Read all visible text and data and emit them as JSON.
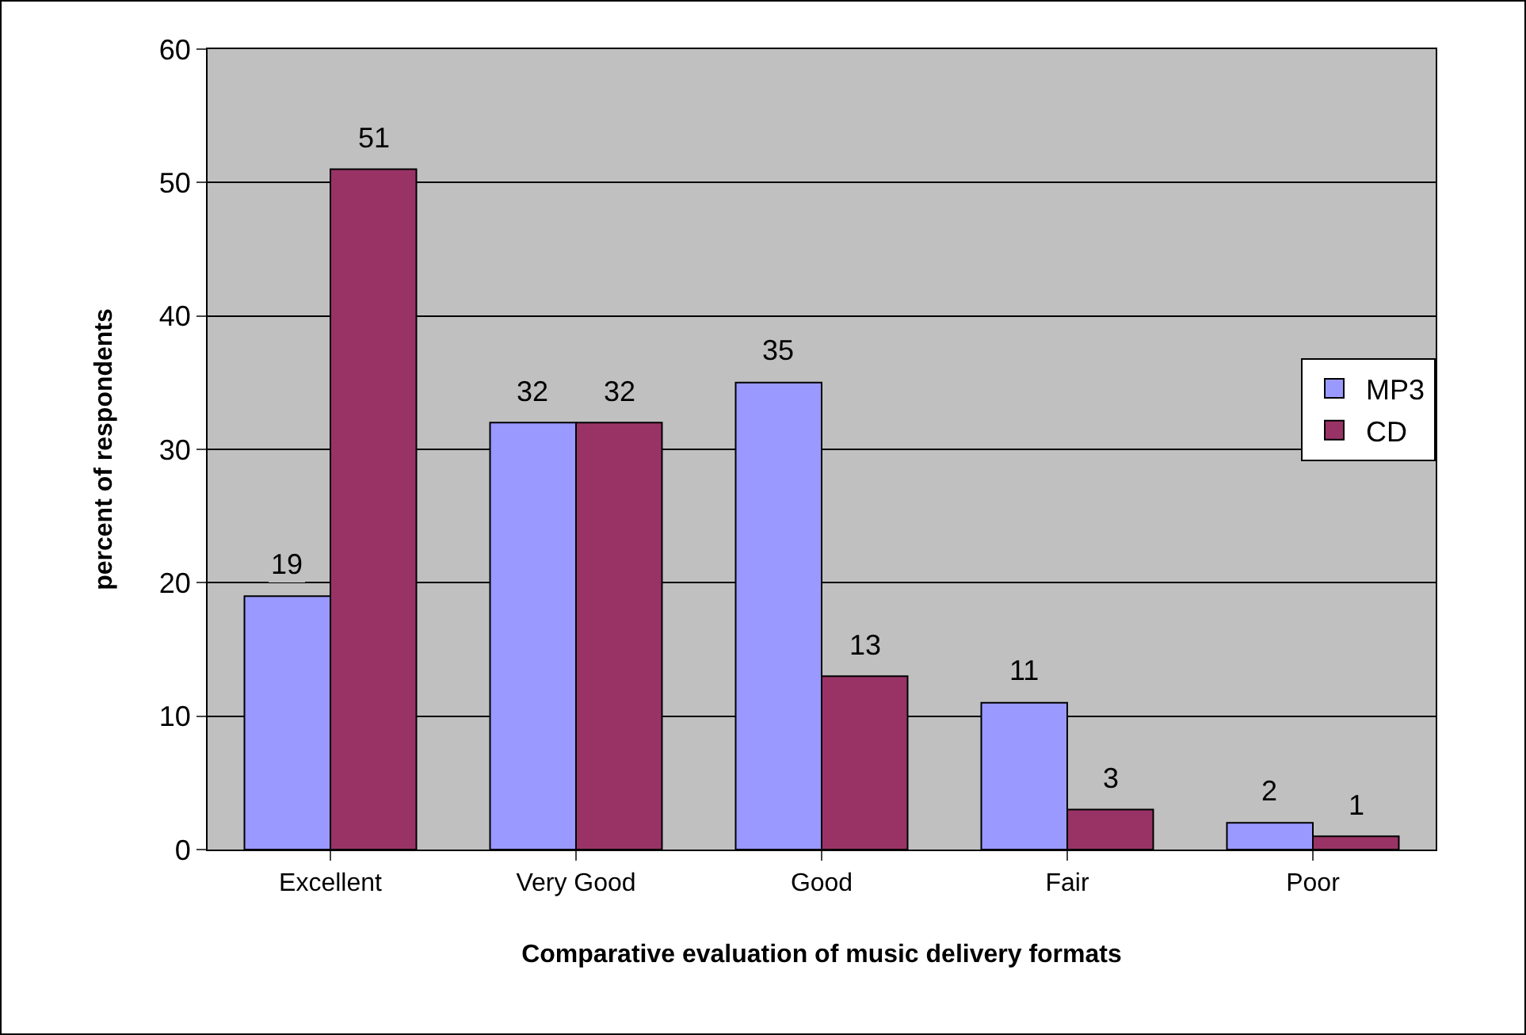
{
  "chart_data": {
    "type": "bar",
    "xlabel": "Comparative evaluation of music delivery formats",
    "ylabel": "percent of respondents",
    "categories": [
      "Excellent",
      "Very Good",
      "Good",
      "Fair",
      "Poor"
    ],
    "series": [
      {
        "name": "MP3",
        "color": "#9999ff",
        "values": [
          19,
          32,
          35,
          11,
          2
        ]
      },
      {
        "name": "CD",
        "color": "#993366",
        "values": [
          51,
          32,
          13,
          3,
          1
        ]
      }
    ],
    "ylim": [
      0,
      60
    ],
    "yticks": [
      0,
      10,
      20,
      30,
      40,
      50,
      60
    ],
    "grid": "y",
    "legend": "right",
    "data_labels": true
  }
}
